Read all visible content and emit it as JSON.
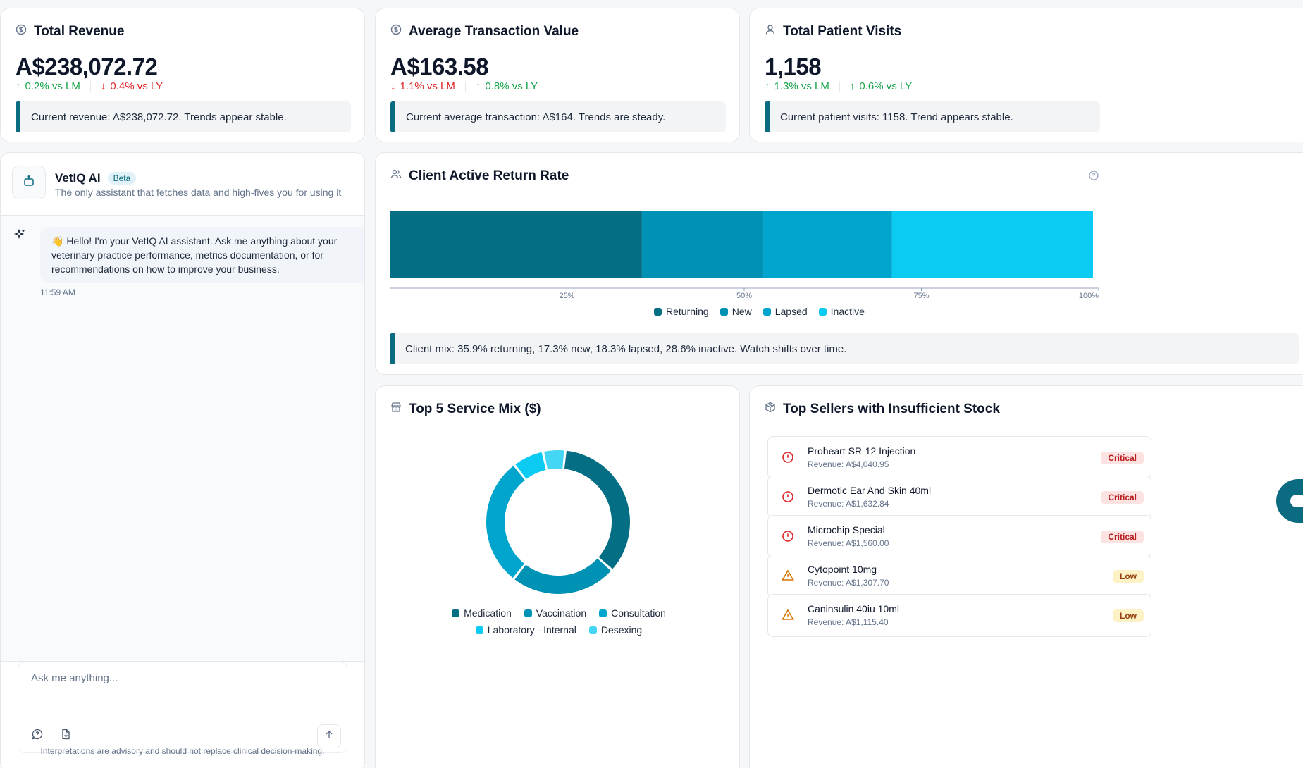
{
  "kpis": [
    {
      "title": "Total Revenue",
      "icon": "dollar-circle-icon",
      "value": "A$238,072.72",
      "lm": {
        "dir": "up",
        "text": "0.2% vs LM"
      },
      "ly": {
        "dir": "down",
        "text": "0.4% vs LY"
      },
      "note": "Current revenue: A$238,072.72. Trends appear stable."
    },
    {
      "title": "Average Transaction Value",
      "icon": "dollar-circle-icon",
      "value": "A$163.58",
      "lm": {
        "dir": "down",
        "text": "1.1% vs LM"
      },
      "ly": {
        "dir": "up",
        "text": "0.8% vs LY"
      },
      "note": "Current average transaction: A$164. Trends are steady."
    },
    {
      "title": "Total Patient Visits",
      "icon": "user-icon",
      "value": "1,158",
      "lm": {
        "dir": "up",
        "text": "1.3% vs LM"
      },
      "ly": {
        "dir": "up",
        "text": "0.6% vs LY"
      },
      "note": "Current patient visits: 1158. Trend appears stable."
    }
  ],
  "chat": {
    "name": "VetIQ AI",
    "badge": "Beta",
    "subtitle": "The only assistant that fetches data and high-fives you for using it",
    "message": "👋 Hello! I'm your VetIQ AI assistant. Ask me anything about your veterinary practice performance, metrics documentation, or for recommendations on how to improve your business.",
    "time": "11:59 AM",
    "placeholder": "Ask me anything...",
    "disclaimer": "Interpretations are advisory and should not replace clinical decision-making."
  },
  "return_rate": {
    "title": "Client Active Return Rate",
    "note": "Client mix: 35.9% returning, 17.3% new, 18.3% lapsed, 28.6% inactive. Watch shifts over time."
  },
  "service_mix": {
    "title": "Top 5 Service Mix ($)"
  },
  "stock": {
    "title": "Top Sellers with Insufficient Stock",
    "items": [
      {
        "name": "Proheart SR-12 Injection",
        "revenue": "Revenue: A$4,040.95",
        "status": "Critical",
        "level": "critical"
      },
      {
        "name": "Dermotic Ear And Skin 40ml",
        "revenue": "Revenue: A$1,632.84",
        "status": "Critical",
        "level": "critical"
      },
      {
        "name": "Microchip Special",
        "revenue": "Revenue: A$1,560.00",
        "status": "Critical",
        "level": "critical"
      },
      {
        "name": "Cytopoint 10mg",
        "revenue": "Revenue: A$1,307.70",
        "status": "Low",
        "level": "low"
      },
      {
        "name": "Caninsulin 40iu 10ml",
        "revenue": "Revenue: A$1,115.40",
        "status": "Low",
        "level": "low"
      }
    ]
  },
  "colors": {
    "accent": "#0b6b80",
    "up": "#16a34a",
    "down": "#dc2626"
  },
  "chart_data": [
    {
      "type": "bar",
      "orientation": "horizontal-stacked-100",
      "categories": [
        "Returning",
        "New",
        "Lapsed",
        "Inactive"
      ],
      "values": [
        35.9,
        17.3,
        18.3,
        28.6
      ],
      "colors": [
        "#046e84",
        "#0092b5",
        "#00a5cd",
        "#0ccbf2"
      ],
      "x_ticks": [
        "25%",
        "50%",
        "75%",
        "100%"
      ],
      "xlim": [
        0,
        100
      ],
      "legend": "bottom-center"
    },
    {
      "type": "pie",
      "style": "donut",
      "categories": [
        "Medication",
        "Vaccination",
        "Consultation",
        "Laboratory - Internal",
        "Desexing"
      ],
      "values": [
        35,
        24,
        29,
        7,
        5
      ],
      "colors": [
        "#046e84",
        "#0092b5",
        "#00a5cd",
        "#0ccbf2",
        "#46d6f5"
      ],
      "legend": "bottom-center"
    }
  ]
}
